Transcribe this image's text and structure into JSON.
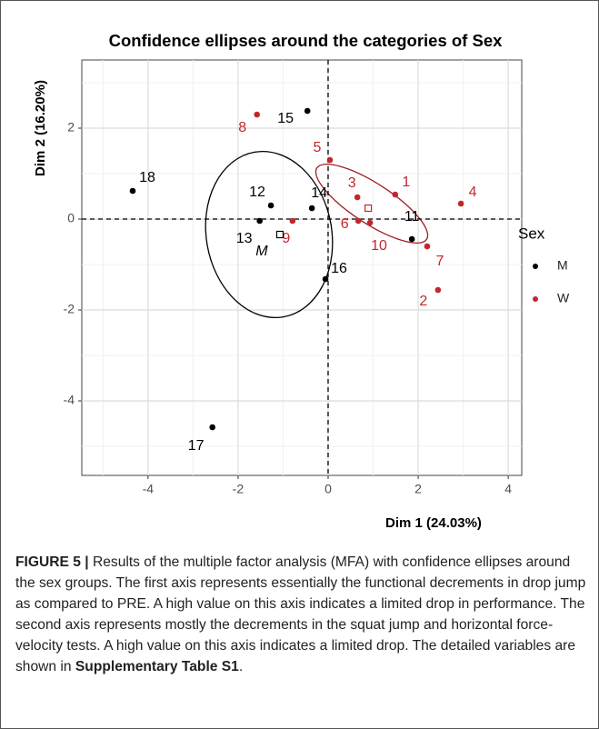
{
  "chart_data": {
    "type": "scatter",
    "title": "Confidence ellipses around the categories of Sex",
    "x_label": "Dim 1 (24.03%)",
    "y_label": "Dim 2 (16.20%)",
    "xlim": [
      -5.47,
      4.3
    ],
    "ylim": [
      -5.64,
      3.5
    ],
    "xticks": [
      -4,
      -2,
      0,
      2,
      4
    ],
    "yticks": [
      2,
      0,
      -2,
      -4
    ],
    "xminor": [
      -5,
      -3,
      -1,
      1,
      3
    ],
    "yminor": [
      3,
      1,
      -1,
      -3,
      -5
    ],
    "grid": true,
    "legend_title": "Sex",
    "legend_position": "right",
    "series": [
      {
        "name": "M",
        "color": "#000000",
        "labels": [
          "18",
          "15",
          "12",
          "14",
          "13",
          "11",
          "16",
          "17"
        ],
        "x": [
          -4.34,
          -0.46,
          -1.27,
          -0.36,
          -1.52,
          1.86,
          -0.06,
          -2.57
        ],
        "values": [
          0.62,
          2.38,
          0.3,
          0.24,
          -0.04,
          -0.44,
          -1.32,
          -4.58
        ]
      },
      {
        "name": "W",
        "color": "#c0282d",
        "labels": [
          "8",
          "5",
          "3",
          "1",
          "4",
          "9",
          "6",
          "10",
          "7",
          "2"
        ],
        "x": [
          -1.58,
          0.04,
          0.65,
          1.49,
          2.95,
          -0.79,
          0.67,
          0.93,
          2.2,
          2.44
        ],
        "values": [
          2.3,
          1.3,
          0.48,
          0.54,
          0.34,
          -0.04,
          -0.04,
          -0.08,
          -0.6,
          -1.56
        ]
      }
    ],
    "group_means": {
      "labels": [
        "M",
        null
      ],
      "x": [
        -1.07,
        0.89
      ],
      "y": [
        -0.34,
        0.24
      ]
    }
  },
  "caption": {
    "label": "FIGURE 5 |",
    "text": " Results of the multiple factor analysis (MFA) with confidence ellipses around the sex groups. The first axis represents essentially the functional decrements in drop jump as compared to PRE. A high value on this axis indicates a limited drop in performance. The second axis represents mostly the decrements in the squat jump and horizontal force-velocity tests. A high value on this axis indicates a limited drop. The detailed variables are shown in ",
    "reference": "Supplementary Table S1",
    "end": "."
  }
}
